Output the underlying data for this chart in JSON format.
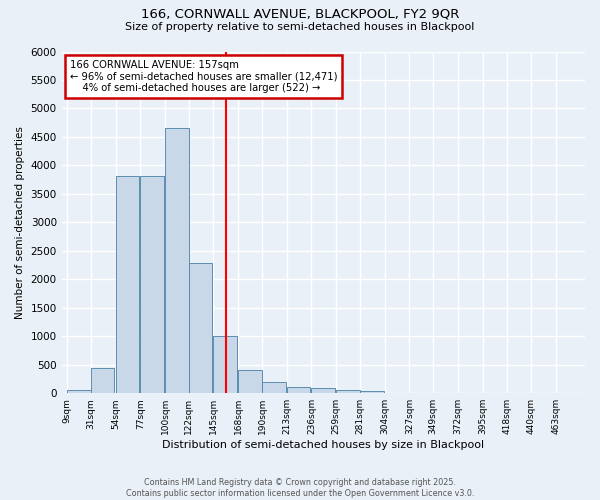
{
  "title1": "166, CORNWALL AVENUE, BLACKPOOL, FY2 9QR",
  "title2": "Size of property relative to semi-detached houses in Blackpool",
  "xlabel": "Distribution of semi-detached houses by size in Blackpool",
  "ylabel": "Number of semi-detached properties",
  "bin_labels": [
    "9sqm",
    "31sqm",
    "54sqm",
    "77sqm",
    "100sqm",
    "122sqm",
    "145sqm",
    "168sqm",
    "190sqm",
    "213sqm",
    "236sqm",
    "259sqm",
    "281sqm",
    "304sqm",
    "327sqm",
    "349sqm",
    "372sqm",
    "395sqm",
    "418sqm",
    "440sqm",
    "463sqm"
  ],
  "bar_heights": [
    50,
    450,
    3820,
    3820,
    4650,
    2280,
    1010,
    400,
    200,
    110,
    90,
    55,
    30,
    0,
    0,
    0,
    0,
    0,
    0,
    0,
    0
  ],
  "label_vals": [
    9,
    31,
    54,
    77,
    100,
    122,
    145,
    168,
    190,
    213,
    236,
    259,
    281,
    304,
    327,
    349,
    372,
    395,
    418,
    440,
    463
  ],
  "bin_width": 22,
  "property_value": 157,
  "pct_smaller": 96,
  "pct_larger": 4,
  "count_smaller": 12471,
  "count_larger": 522,
  "bar_color": "#c8d8e8",
  "bar_edge_color": "#5b8db0",
  "vline_color": "red",
  "annotation_box_edgecolor": "#cc0000",
  "background_color": "#eaf0f8",
  "grid_color": "#ffffff",
  "footer_text": "Contains HM Land Registry data © Crown copyright and database right 2025.\nContains public sector information licensed under the Open Government Licence v3.0.",
  "ylim": [
    0,
    6000
  ],
  "yticks": [
    0,
    500,
    1000,
    1500,
    2000,
    2500,
    3000,
    3500,
    4000,
    4500,
    5000,
    5500,
    6000
  ]
}
